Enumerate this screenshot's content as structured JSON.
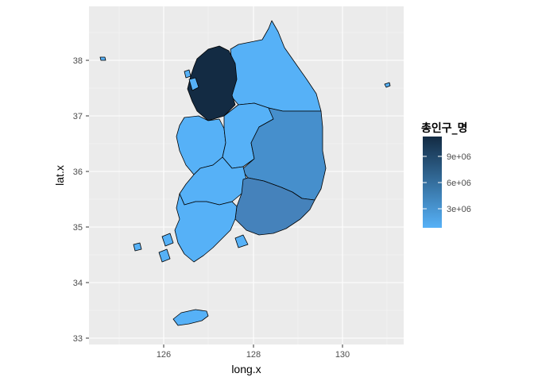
{
  "plot": {
    "x_label": "long.x",
    "y_label": "lat.x",
    "panel_background": "#ebebeb",
    "grid_color": "#ffffff",
    "x_ticks": [
      "126",
      "128",
      "130"
    ],
    "y_ticks": [
      "33",
      "34",
      "35",
      "36",
      "37",
      "38"
    ]
  },
  "legend": {
    "title": "총인구_명",
    "labels": [
      "9e+06",
      "6e+06",
      "3e+06"
    ],
    "color_low": "#56b1f7",
    "color_high": "#132b43"
  },
  "regions": [
    {
      "name": "Gyeonggi",
      "fill": "#132b43"
    },
    {
      "name": "Gangwon",
      "fill": "#56b1f7"
    },
    {
      "name": "Chungbuk",
      "fill": "#56b1f7"
    },
    {
      "name": "Chungnam",
      "fill": "#56b1f7"
    },
    {
      "name": "Gyeongbuk",
      "fill": "#468fcc"
    },
    {
      "name": "Jeonbuk",
      "fill": "#56b1f7"
    },
    {
      "name": "Jeonnam",
      "fill": "#56b1f7"
    },
    {
      "name": "Gyeongnam",
      "fill": "#4582bb"
    },
    {
      "name": "Jeju",
      "fill": "#56b1f7"
    }
  ]
}
